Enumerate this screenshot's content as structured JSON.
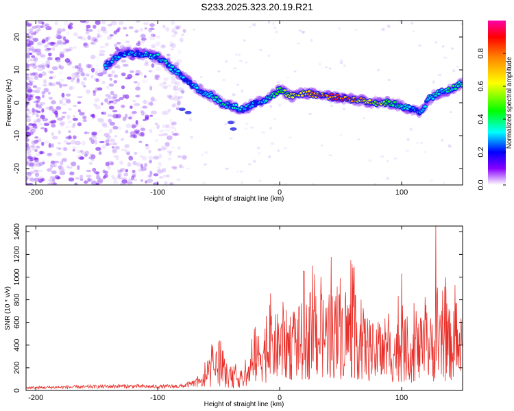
{
  "title": "S233.2025.323.20.19.R21",
  "chart_data": [
    {
      "type": "heatmap",
      "name": "spectrogram",
      "xlabel": "Height of straight line (km)",
      "ylabel": "Frequency (Hz)",
      "xlim": [
        -208,
        150
      ],
      "ylim": [
        -25,
        25
      ],
      "xticks": [
        -200,
        -100,
        0,
        100
      ],
      "xtick_labels": [
        "-200",
        "-100",
        "0",
        "100"
      ],
      "yticks": [
        -20,
        -10,
        0,
        10,
        20
      ],
      "ytick_labels": [
        "-20",
        "-10",
        "0",
        "10",
        "20"
      ],
      "colorbar": {
        "label": "Normalized spectral amplitude",
        "range": [
          0,
          1
        ],
        "ticks": [
          0.0,
          0.2,
          0.4,
          0.6,
          0.8
        ],
        "tick_labels": [
          "0.0",
          "0.2",
          "0.4",
          "0.6",
          "0.8"
        ]
      },
      "ridge": {
        "x": [
          -143,
          -130,
          -115,
          -100,
          -90,
          -80,
          -70,
          -62,
          -55,
          -48,
          -40,
          -30,
          -20,
          -10,
          0,
          10,
          20,
          30,
          40,
          50,
          60,
          70,
          80,
          90,
          100,
          108,
          115,
          122,
          130,
          140,
          150
        ],
        "y": [
          11,
          15,
          15,
          14,
          11,
          8,
          5,
          3,
          2,
          0,
          -1,
          -2,
          0,
          1,
          4,
          2,
          3,
          2.5,
          2,
          1.5,
          1,
          0.5,
          0,
          0,
          -1,
          -2,
          -3,
          1,
          3,
          4,
          6
        ],
        "amplitude": [
          0.35,
          0.3,
          0.3,
          0.35,
          0.35,
          0.3,
          0.3,
          0.35,
          0.4,
          0.4,
          0.35,
          0.35,
          0.3,
          0.35,
          0.5,
          0.6,
          0.75,
          0.8,
          0.85,
          0.85,
          0.8,
          0.7,
          0.65,
          0.5,
          0.4,
          0.3,
          0.3,
          0.35,
          0.35,
          0.4,
          0.4
        ]
      }
    },
    {
      "type": "line",
      "name": "snr",
      "xlabel": "Height of straight line (km)",
      "ylabel": "SNR (10 * v/v)",
      "xlim": [
        -208,
        150
      ],
      "ylim": [
        0,
        1450
      ],
      "xticks": [
        -200,
        -100,
        0,
        100
      ],
      "xtick_labels": [
        "-200",
        "-100",
        "0",
        "100"
      ],
      "yticks": [
        0,
        200,
        400,
        600,
        800,
        1000,
        1200,
        1400
      ],
      "ytick_labels": [
        "0",
        "200",
        "400",
        "600",
        "800",
        "1000",
        "1200",
        "1400"
      ],
      "color": "#e8302a",
      "envelope": {
        "x": [
          -208,
          -180,
          -150,
          -130,
          -100,
          -80,
          -65,
          -60,
          -55,
          -50,
          -45,
          -40,
          -35,
          -30,
          -25,
          -20,
          -15,
          -10,
          -5,
          0,
          10,
          20,
          30,
          40,
          50,
          60,
          65,
          70,
          80,
          90,
          100,
          110,
          120,
          130,
          140,
          150
        ],
        "y": [
          25,
          30,
          35,
          40,
          35,
          40,
          80,
          150,
          230,
          260,
          180,
          120,
          150,
          120,
          200,
          320,
          420,
          450,
          480,
          500,
          520,
          560,
          600,
          620,
          640,
          620,
          580,
          500,
          380,
          420,
          460,
          440,
          460,
          500,
          520,
          480
        ]
      },
      "peaks": {
        "x": [
          -50,
          -20,
          20,
          25,
          40,
          100,
          112,
          128,
          136
        ],
        "y": [
          420,
          560,
          1050,
          870,
          700,
          1030,
          700,
          1450,
          1000
        ]
      }
    }
  ]
}
